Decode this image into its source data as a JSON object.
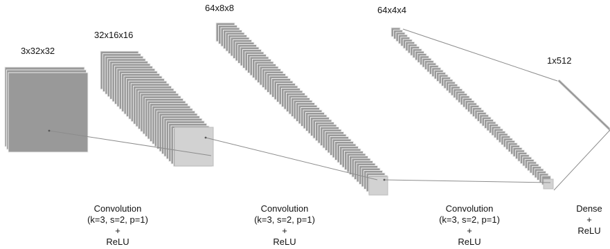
{
  "layers": [
    {
      "dims": "3x32x32"
    },
    {
      "dims": "32x16x16"
    },
    {
      "dims": "64x8x8"
    },
    {
      "dims": "64x4x4"
    },
    {
      "dims": "1x512"
    }
  ],
  "operations": [
    {
      "name": "Convolution",
      "params": "(k=3, s=2, p=1)",
      "plus": "+",
      "activation": "ReLU"
    },
    {
      "name": "Convolution",
      "params": "(k=3, s=2, p=1)",
      "plus": "+",
      "activation": "ReLU"
    },
    {
      "name": "Convolution",
      "params": "(k=3, s=2, p=1)",
      "plus": "+",
      "activation": "ReLU"
    },
    {
      "name": "Dense",
      "plus": "+",
      "activation": "ReLU"
    }
  ],
  "colors": {
    "feature_map_fill": "#999999",
    "feature_map_stroke": "#ececec",
    "kernel_fill": "#d2d2d2",
    "connector": "#8c8c8c"
  }
}
